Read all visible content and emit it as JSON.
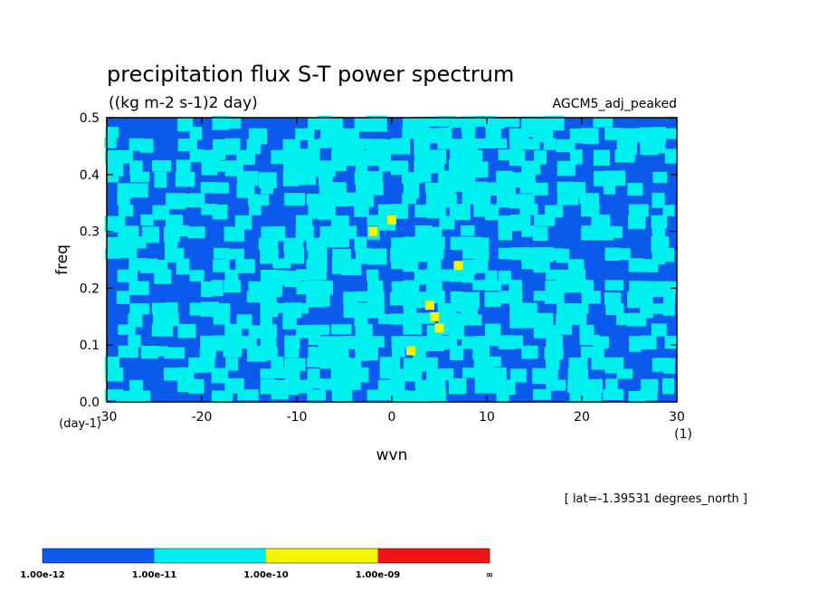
{
  "chart_data": {
    "type": "heatmap",
    "title": "precipitation flux S-T power spectrum",
    "subtitle": "((kg m-2 s-1)2 day)",
    "dataset": "AGCM5_adj_peaked",
    "annotation": "[ lat=-1.39531 degrees_north ]",
    "xlabel": "wvn",
    "xunit": "(1)",
    "ylabel": "freq",
    "yunit": "(day-1)",
    "xlim": [
      -30,
      30
    ],
    "ylim": [
      0,
      0.5
    ],
    "xticks": [
      -30,
      -20,
      -10,
      0,
      10,
      20,
      30
    ],
    "yticks": [
      0.0,
      0.1,
      0.2,
      0.3,
      0.4,
      0.5
    ],
    "xtick_labels": [
      "-30",
      "-20",
      "-10",
      "0",
      "10",
      "20",
      "30"
    ],
    "ytick_labels": [
      "0.0",
      "0.1",
      "0.2",
      "0.3",
      "0.4",
      "0.5"
    ],
    "color_levels": [
      {
        "label": "1.00e-12",
        "color": "#0a5aeb"
      },
      {
        "label": "1.00e-11",
        "color": "#00f0f0"
      },
      {
        "label": "1.00e-10",
        "color": "#f5f500"
      },
      {
        "label": "1.00e-09",
        "color": "#f01414"
      },
      {
        "label": "∞",
        "color": ""
      }
    ],
    "highlight_cells": [
      {
        "x": -2,
        "y": 0.3
      },
      {
        "x": 0,
        "y": 0.32
      },
      {
        "x": 4,
        "y": 0.17
      },
      {
        "x": 4.5,
        "y": 0.15
      },
      {
        "x": 5,
        "y": 0.13
      },
      {
        "x": 2,
        "y": 0.09
      },
      {
        "x": 7,
        "y": 0.24
      }
    ]
  }
}
